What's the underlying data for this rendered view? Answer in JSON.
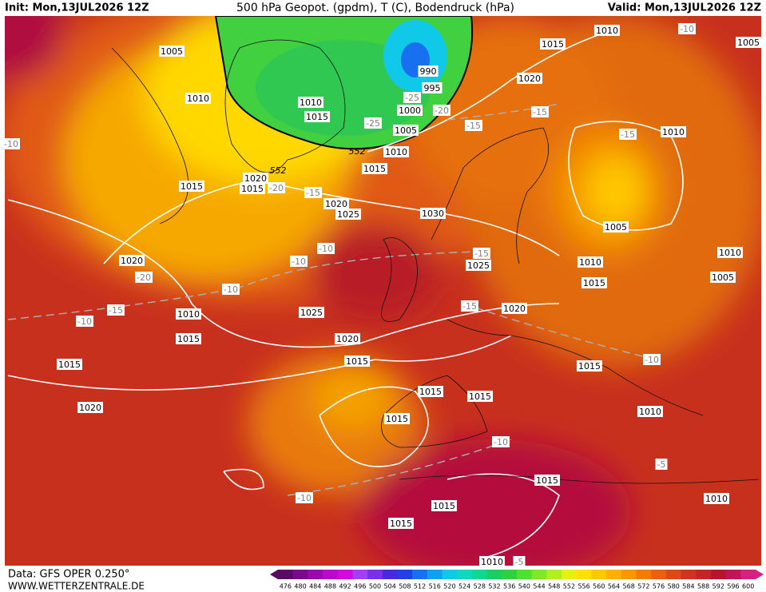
{
  "header": {
    "init": "Init: Mon,13JUL2026 12Z",
    "title": "500 hPa Geopot. (gpdm), T (C), Bodendruck (hPa)",
    "valid": "Valid: Mon,13JUL2026 12Z"
  },
  "map": {
    "pressure_labels": [
      1010,
      1015,
      1005,
      1005,
      990,
      995,
      1020,
      1010,
      1010,
      1000,
      1015,
      1005,
      1010,
      1010,
      1015,
      1020,
      1015,
      1015,
      1020,
      1025,
      1030,
      1005,
      1020,
      1010,
      1025,
      1010,
      1005,
      1015,
      1020,
      1025,
      1010,
      1015,
      1020,
      1015,
      1015,
      1015,
      1015,
      1015,
      1020,
      1015,
      1010,
      1015,
      1010,
      1015,
      1015,
      1010
    ],
    "temperature_labels": [
      -10,
      -15,
      -15,
      -15,
      -25,
      -20,
      -25,
      -10,
      -20,
      -15,
      -10,
      -10,
      -15,
      -20,
      -10,
      -15,
      -10,
      -15,
      -10,
      -10,
      -5,
      -10,
      -5
    ],
    "geopotential_labels": [
      552,
      552
    ]
  },
  "colorbar": {
    "labels": [
      476,
      480,
      484,
      488,
      492,
      496,
      500,
      504,
      508,
      512,
      516,
      520,
      524,
      528,
      532,
      536,
      540,
      544,
      548,
      552,
      556,
      560,
      564,
      568,
      572,
      576,
      580,
      584,
      588,
      592,
      596,
      600
    ],
    "colors": [
      "#5a0a64",
      "#7a0a8a",
      "#9a0aaa",
      "#b80ac8",
      "#d20adc",
      "#a040f0",
      "#7a30e8",
      "#4a28e0",
      "#2040e8",
      "#1870f0",
      "#10a0f0",
      "#10c8e8",
      "#10d8c0",
      "#10d890",
      "#18d060",
      "#30d040",
      "#50e030",
      "#80e828",
      "#b0f020",
      "#e8f010",
      "#ffe000",
      "#ffc800",
      "#ffb000",
      "#f89800",
      "#f07c00",
      "#e86010",
      "#dc4818",
      "#d03420",
      "#c42424",
      "#b8142c",
      "#c01458",
      "#d82080"
    ]
  },
  "footer": {
    "source": "Data: GFS OPER 0.250°",
    "site": "WWW.WETTERZENTRALE.DE"
  }
}
